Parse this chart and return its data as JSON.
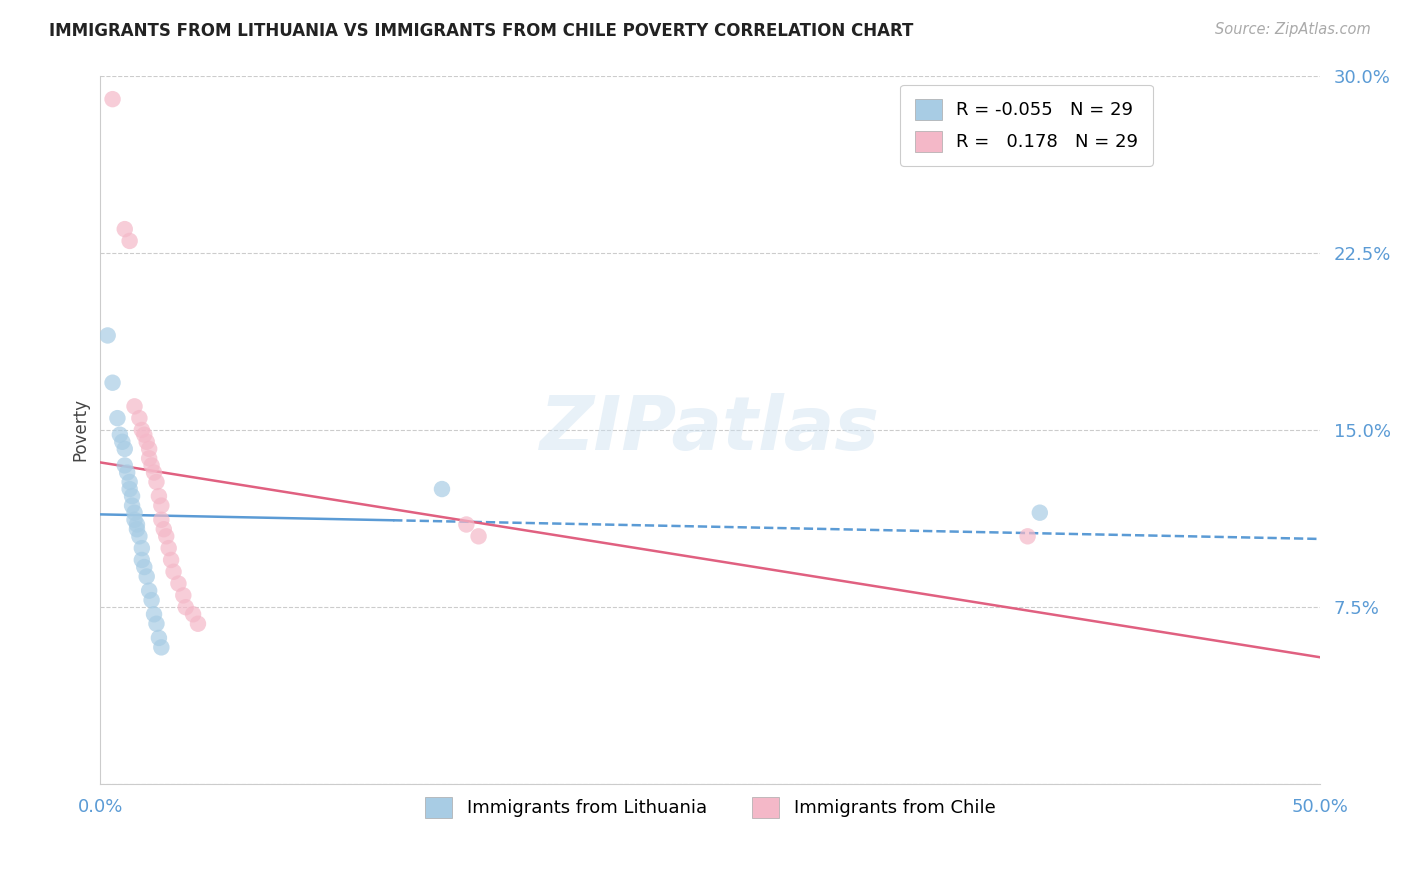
{
  "title": "IMMIGRANTS FROM LITHUANIA VS IMMIGRANTS FROM CHILE POVERTY CORRELATION CHART",
  "source": "Source: ZipAtlas.com",
  "ylabel_label": "Poverty",
  "xlim": [
    0.0,
    0.5
  ],
  "ylim": [
    0.0,
    0.3
  ],
  "yticks": [
    0.0,
    0.075,
    0.15,
    0.225,
    0.3
  ],
  "xticks": [
    0.0,
    0.1,
    0.2,
    0.3,
    0.4,
    0.5
  ],
  "legend_label1": "Immigrants from Lithuania",
  "legend_label2": "Immigrants from Chile",
  "watermark": "ZIPatlas",
  "blue_color": "#a8cce4",
  "pink_color": "#f4b8c8",
  "blue_line_color": "#5b9bd5",
  "pink_line_color": "#e06080",
  "R_lithuania": -0.055,
  "R_chile": 0.178,
  "N": 29,
  "lithuania_data": [
    [
      0.003,
      0.19
    ],
    [
      0.005,
      0.17
    ],
    [
      0.007,
      0.155
    ],
    [
      0.008,
      0.148
    ],
    [
      0.009,
      0.145
    ],
    [
      0.01,
      0.142
    ],
    [
      0.01,
      0.135
    ],
    [
      0.011,
      0.132
    ],
    [
      0.012,
      0.128
    ],
    [
      0.012,
      0.125
    ],
    [
      0.013,
      0.122
    ],
    [
      0.013,
      0.118
    ],
    [
      0.014,
      0.115
    ],
    [
      0.014,
      0.112
    ],
    [
      0.015,
      0.11
    ],
    [
      0.015,
      0.108
    ],
    [
      0.016,
      0.105
    ],
    [
      0.017,
      0.1
    ],
    [
      0.017,
      0.095
    ],
    [
      0.018,
      0.092
    ],
    [
      0.019,
      0.088
    ],
    [
      0.02,
      0.082
    ],
    [
      0.021,
      0.078
    ],
    [
      0.022,
      0.072
    ],
    [
      0.023,
      0.068
    ],
    [
      0.024,
      0.062
    ],
    [
      0.025,
      0.058
    ],
    [
      0.14,
      0.125
    ],
    [
      0.385,
      0.115
    ]
  ],
  "chile_data": [
    [
      0.005,
      0.29
    ],
    [
      0.01,
      0.235
    ],
    [
      0.012,
      0.23
    ],
    [
      0.014,
      0.16
    ],
    [
      0.016,
      0.155
    ],
    [
      0.017,
      0.15
    ],
    [
      0.018,
      0.148
    ],
    [
      0.019,
      0.145
    ],
    [
      0.02,
      0.142
    ],
    [
      0.02,
      0.138
    ],
    [
      0.021,
      0.135
    ],
    [
      0.022,
      0.132
    ],
    [
      0.023,
      0.128
    ],
    [
      0.024,
      0.122
    ],
    [
      0.025,
      0.118
    ],
    [
      0.025,
      0.112
    ],
    [
      0.026,
      0.108
    ],
    [
      0.027,
      0.105
    ],
    [
      0.028,
      0.1
    ],
    [
      0.029,
      0.095
    ],
    [
      0.03,
      0.09
    ],
    [
      0.032,
      0.085
    ],
    [
      0.034,
      0.08
    ],
    [
      0.035,
      0.075
    ],
    [
      0.038,
      0.072
    ],
    [
      0.04,
      0.068
    ],
    [
      0.15,
      0.11
    ],
    [
      0.155,
      0.105
    ],
    [
      0.38,
      0.105
    ]
  ]
}
